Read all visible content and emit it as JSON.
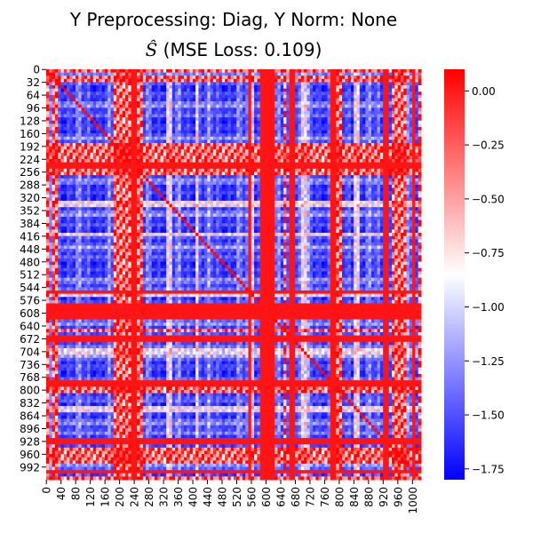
{
  "chart_data": {
    "type": "heatmap",
    "title_line1": "Y Preprocessing: Diag, Y Norm: None",
    "title_line2_symbol": "Ŝ",
    "title_line2_text": " (MSE Loss: 0.109)",
    "xlabel": "",
    "ylabel": "",
    "matrix_size": 1024,
    "x_ticks": [
      0,
      40,
      80,
      120,
      160,
      200,
      240,
      280,
      320,
      360,
      400,
      440,
      480,
      520,
      560,
      600,
      640,
      680,
      720,
      760,
      800,
      840,
      880,
      920,
      960,
      1000
    ],
    "y_ticks": [
      0,
      32,
      64,
      96,
      128,
      160,
      192,
      224,
      256,
      288,
      320,
      352,
      384,
      416,
      448,
      480,
      512,
      544,
      576,
      608,
      640,
      672,
      704,
      736,
      768,
      800,
      832,
      864,
      896,
      928,
      960,
      992
    ],
    "colorbar": {
      "min": -1.8,
      "max": 0.1,
      "ticks": [
        0.0,
        -0.25,
        -0.5,
        -0.75,
        -1.0,
        -1.25,
        -1.5,
        -1.75
      ],
      "tick_labels": [
        "0.00",
        "−0.25",
        "−0.50",
        "−0.75",
        "−1.00",
        "−1.25",
        "−1.50",
        "−1.75"
      ],
      "colormap": "bwr",
      "colors": {
        "low": "#0000ff",
        "mid": "#ffffff",
        "high": "#ff0000"
      }
    },
    "row_col_pattern": {
      "strong_ranges": [
        [
          0,
          10
        ],
        [
          20,
          30
        ],
        [
          54,
          58
        ],
        [
          185,
          262
        ],
        [
          600,
          612
        ],
        [
          650,
          656
        ],
        [
          785,
          810
        ],
        [
          948,
          985
        ],
        [
          1016,
          1024
        ]
      ],
      "medium_ranges": [
        [
          330,
          345
        ],
        [
          410,
          420
        ],
        [
          555,
          570
        ],
        [
          700,
          715
        ],
        [
          840,
          860
        ]
      ],
      "band_ranges": [
        [
          232,
          248
        ],
        [
          550,
          560
        ],
        [
          588,
          622
        ],
        [
          665,
          680
        ],
        [
          775,
          790
        ],
        [
          920,
          935
        ],
        [
          1000,
          1012
        ]
      ]
    },
    "value_estimates": {
      "strong_pair": 0.08,
      "band": 0.02,
      "typical_min": -1.8
    }
  }
}
